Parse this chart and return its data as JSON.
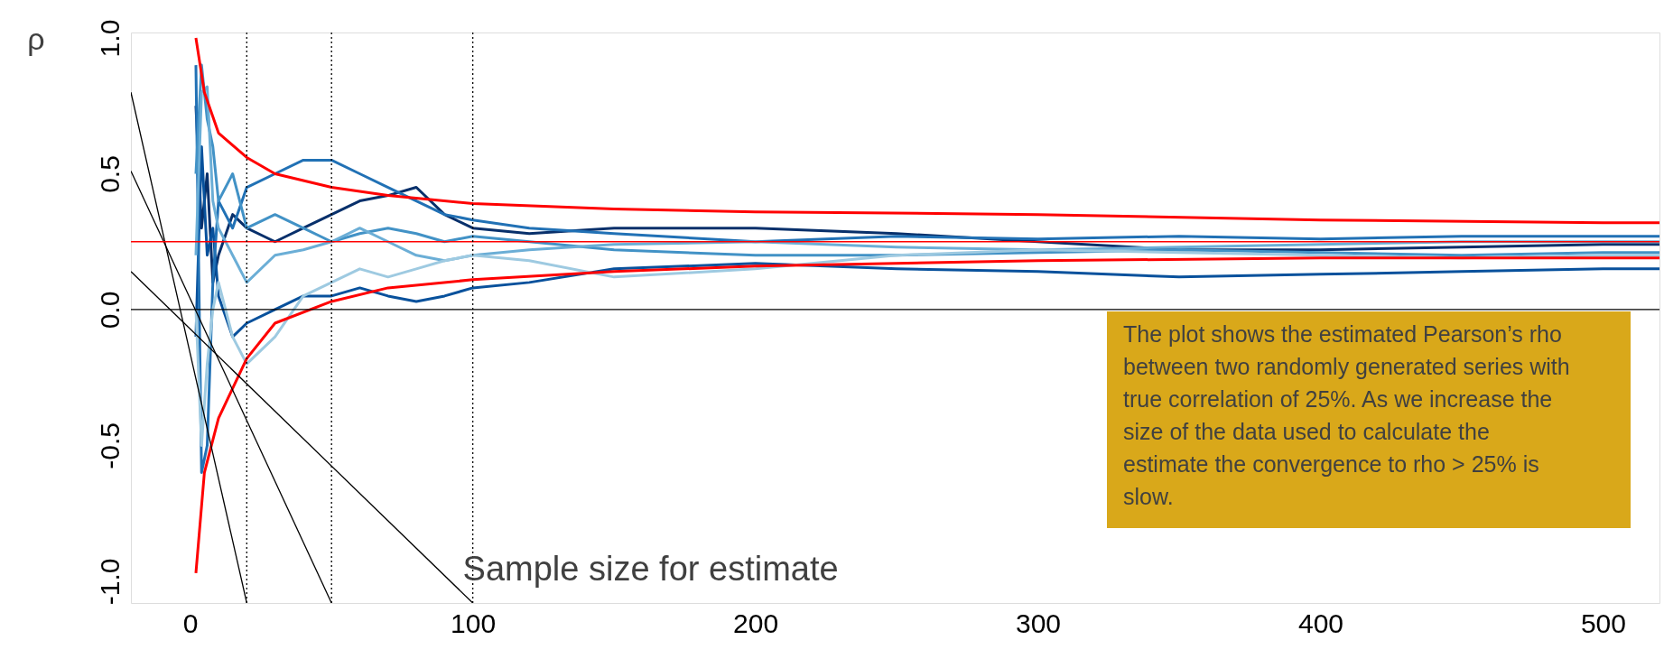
{
  "chart_data": {
    "type": "line",
    "xlabel": "Sample size for estimate",
    "ylabel": "ρ",
    "xlim": [
      -21,
      520
    ],
    "ylim": [
      -1.08,
      1.02
    ],
    "xticks": [
      0,
      100,
      200,
      300,
      400,
      500
    ],
    "yticks": [
      {
        "value": -1,
        "label": "-1.0"
      },
      {
        "value": -0.5,
        "label": "-0.5"
      },
      {
        "value": 0,
        "label": "0.0"
      },
      {
        "value": 0.5,
        "label": "0.5"
      },
      {
        "value": 1,
        "label": "1.0"
      }
    ],
    "grid": false,
    "line_style": "solid",
    "series": [
      {
        "color": "#08306b",
        "x": [
          2,
          4,
          6,
          8,
          10,
          15,
          20,
          30,
          40,
          50,
          60,
          70,
          80,
          90,
          100,
          120,
          150,
          200,
          250,
          300,
          350,
          400,
          450,
          500,
          520
        ],
        "values": [
          0.75,
          0.3,
          0.5,
          0.1,
          0.2,
          0.35,
          0.3,
          0.25,
          0.3,
          0.35,
          0.4,
          0.42,
          0.45,
          0.35,
          0.3,
          0.28,
          0.3,
          0.3,
          0.28,
          0.25,
          0.22,
          0.22,
          0.23,
          0.24,
          0.24
        ]
      },
      {
        "color": "#08519c",
        "x": [
          2,
          4,
          6,
          8,
          10,
          15,
          20,
          30,
          40,
          50,
          60,
          70,
          80,
          90,
          100,
          120,
          150,
          200,
          250,
          300,
          350,
          400,
          450,
          500,
          520
        ],
        "values": [
          -0.1,
          0.6,
          0.2,
          0.3,
          0.05,
          -0.1,
          -0.05,
          0.0,
          0.05,
          0.05,
          0.08,
          0.05,
          0.03,
          0.05,
          0.08,
          0.1,
          0.15,
          0.17,
          0.15,
          0.14,
          0.12,
          0.13,
          0.14,
          0.15,
          0.15
        ]
      },
      {
        "color": "#2171b5",
        "x": [
          2,
          4,
          6,
          8,
          10,
          15,
          20,
          30,
          40,
          50,
          60,
          70,
          80,
          90,
          100,
          120,
          150,
          200,
          250,
          300,
          350,
          400,
          450,
          500,
          520
        ],
        "values": [
          0.9,
          -0.6,
          -0.5,
          0.1,
          0.4,
          0.3,
          0.45,
          0.5,
          0.55,
          0.55,
          0.5,
          0.45,
          0.4,
          0.35,
          0.33,
          0.3,
          0.28,
          0.25,
          0.27,
          0.26,
          0.27,
          0.26,
          0.27,
          0.27,
          0.27
        ]
      },
      {
        "color": "#4292c6",
        "x": [
          2,
          4,
          6,
          8,
          10,
          15,
          20,
          30,
          40,
          50,
          60,
          70,
          80,
          90,
          100,
          120,
          150,
          200,
          250,
          300,
          350,
          400,
          450,
          500,
          520
        ],
        "values": [
          0.5,
          0.9,
          0.7,
          0.6,
          0.4,
          0.5,
          0.3,
          0.35,
          0.3,
          0.25,
          0.28,
          0.3,
          0.28,
          0.25,
          0.27,
          0.25,
          0.22,
          0.2,
          0.2,
          0.21,
          0.22,
          0.21,
          0.2,
          0.21,
          0.21
        ]
      },
      {
        "color": "#6baed6",
        "x": [
          2,
          4,
          6,
          8,
          10,
          15,
          20,
          30,
          40,
          50,
          60,
          70,
          80,
          90,
          100,
          120,
          150,
          200,
          250,
          300,
          350,
          400,
          450,
          500,
          520
        ],
        "values": [
          0.2,
          0.8,
          0.82,
          0.4,
          0.3,
          0.2,
          0.1,
          0.2,
          0.22,
          0.25,
          0.3,
          0.25,
          0.2,
          0.18,
          0.2,
          0.22,
          0.24,
          0.25,
          0.23,
          0.22,
          0.23,
          0.24,
          0.25,
          0.25,
          0.25
        ]
      },
      {
        "color": "#9ecae1",
        "x": [
          2,
          4,
          6,
          8,
          10,
          15,
          20,
          30,
          40,
          50,
          60,
          70,
          80,
          90,
          100,
          120,
          150,
          200,
          250,
          300,
          350,
          400,
          450,
          500,
          520
        ],
        "values": [
          0.0,
          -0.5,
          -0.2,
          0.0,
          0.1,
          -0.1,
          -0.2,
          -0.1,
          0.05,
          0.1,
          0.15,
          0.12,
          0.15,
          0.18,
          0.2,
          0.18,
          0.12,
          0.15,
          0.2,
          0.22,
          0.21,
          0.2,
          0.19,
          0.2,
          0.2
        ]
      },
      {
        "color": "#ff0000",
        "x": [
          2,
          5,
          10,
          20,
          30,
          50,
          70,
          100,
          150,
          200,
          300,
          400,
          500,
          520
        ],
        "values": [
          1.0,
          0.8,
          0.65,
          0.56,
          0.5,
          0.45,
          0.42,
          0.39,
          0.37,
          0.36,
          0.35,
          0.33,
          0.32,
          0.32
        ]
      },
      {
        "color": "#ff0000",
        "x": [
          2,
          5,
          10,
          20,
          30,
          50,
          70,
          100,
          150,
          200,
          300,
          400,
          500,
          520
        ],
        "values": [
          -0.97,
          -0.6,
          -0.4,
          -0.18,
          -0.05,
          0.03,
          0.08,
          0.11,
          0.14,
          0.16,
          0.18,
          0.19,
          0.19,
          0.19
        ]
      },
      {
        "color": "#000000",
        "x": [
          -21,
          20
        ],
        "values": [
          0.8,
          -1.08
        ]
      },
      {
        "color": "#000000",
        "x": [
          -21,
          50
        ],
        "values": [
          0.51,
          -1.08
        ]
      },
      {
        "color": "#000000",
        "x": [
          -21,
          100
        ],
        "values": [
          0.14,
          -1.08
        ]
      }
    ],
    "ref_lines": [
      {
        "axis": "y",
        "value": 0,
        "color": "#000000",
        "line_style": "solid"
      },
      {
        "axis": "y",
        "value": 0.25,
        "color": "#ff0000",
        "line_style": "solid"
      },
      {
        "axis": "x",
        "value": 20,
        "color": "#000000",
        "line_style": "dotted"
      },
      {
        "axis": "x",
        "value": 50,
        "color": "#000000",
        "line_style": "dotted"
      },
      {
        "axis": "x",
        "value": 100,
        "color": "#000000",
        "line_style": "dotted"
      }
    ],
    "annotations": [
      "The plot shows the estimated Pearson’s rho between two randomly generated series with true correlation of 25%. As we increase the size of the data used to calculate the estimate the convergence to rho > 25% is slow."
    ]
  }
}
